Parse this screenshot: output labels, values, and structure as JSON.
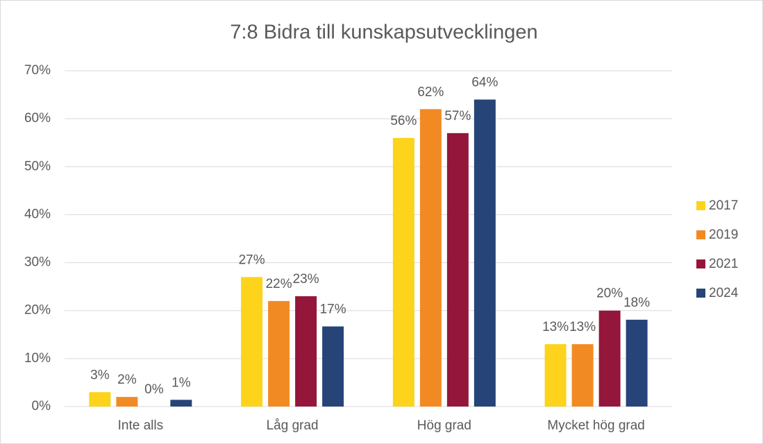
{
  "chart_data": {
    "type": "bar",
    "title": "7:8 Bidra till kunskapsutvecklingen",
    "categories": [
      "Inte alls",
      "Låg grad",
      "Hög grad",
      "Mycket hög grad"
    ],
    "series": [
      {
        "name": "2017",
        "color": "#fdd31b",
        "values": [
          3,
          27,
          56,
          13
        ],
        "value_labels": [
          "3%",
          "27%",
          "56%",
          "13%"
        ]
      },
      {
        "name": "2019",
        "color": "#f28a24",
        "values": [
          2,
          22,
          62,
          13
        ],
        "value_labels": [
          "2%",
          "22%",
          "62%",
          "13%"
        ]
      },
      {
        "name": "2021",
        "color": "#95163b",
        "values": [
          0,
          23,
          57,
          20
        ],
        "value_labels": [
          "0%",
          "23%",
          "57%",
          "20%"
        ]
      },
      {
        "name": "2024",
        "color": "#264478",
        "values": [
          1.4,
          16.7,
          64,
          18.1
        ],
        "value_labels": [
          "1%",
          "17%",
          "64%",
          "18%"
        ]
      }
    ],
    "ylim": [
      0,
      70
    ],
    "yticks": [
      {
        "value": 0,
        "label": "0%"
      },
      {
        "value": 10,
        "label": "10%"
      },
      {
        "value": 20,
        "label": "20%"
      },
      {
        "value": 30,
        "label": "30%"
      },
      {
        "value": 40,
        "label": "40%"
      },
      {
        "value": 50,
        "label": "50%"
      },
      {
        "value": 60,
        "label": "60%"
      },
      {
        "value": 70,
        "label": "70%"
      }
    ],
    "grid": true,
    "legend": "right"
  }
}
